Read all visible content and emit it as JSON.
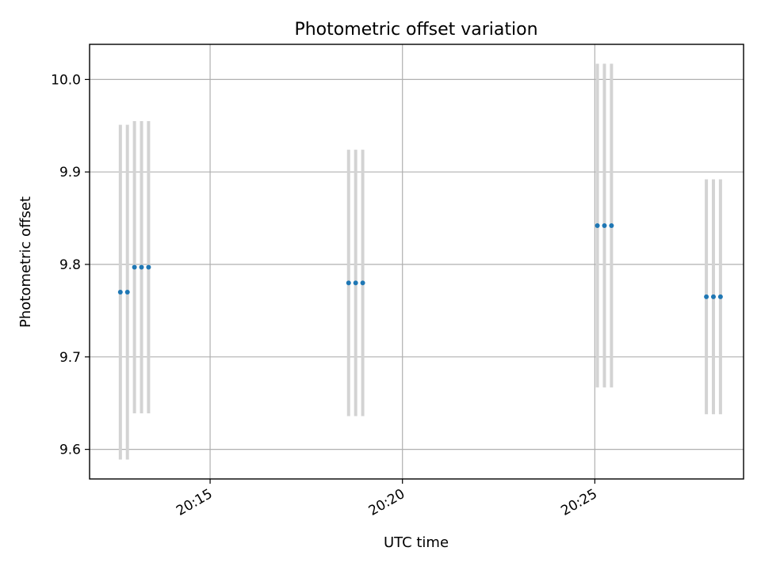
{
  "chart_data": {
    "type": "scatter",
    "title": "Photometric offset variation",
    "xlabel": "UTC time",
    "ylabel": "Photometric offset",
    "x_ticks": [
      "20:15",
      "20:20",
      "20:25"
    ],
    "y_ticks": [
      "9.6",
      "9.7",
      "9.8",
      "9.9",
      "10.0"
    ],
    "xlim": [
      "20:11:52",
      "20:28:52"
    ],
    "ylim": [
      9.568,
      10.038
    ],
    "grid": true,
    "point_color": "#1f77b4",
    "errorbar_color": "#d3d3d3",
    "points": [
      {
        "x": "20:12:40",
        "y": 9.77,
        "yerr": 0.181
      },
      {
        "x": "20:12:51",
        "y": 9.77,
        "yerr": 0.181
      },
      {
        "x": "20:13:02",
        "y": 9.797,
        "yerr": 0.158
      },
      {
        "x": "20:13:13",
        "y": 9.797,
        "yerr": 0.158
      },
      {
        "x": "20:13:24",
        "y": 9.797,
        "yerr": 0.158
      },
      {
        "x": "20:18:36",
        "y": 9.78,
        "yerr": 0.144
      },
      {
        "x": "20:18:47",
        "y": 9.78,
        "yerr": 0.144
      },
      {
        "x": "20:18:58",
        "y": 9.78,
        "yerr": 0.144
      },
      {
        "x": "20:25:04",
        "y": 9.842,
        "yerr": 0.175
      },
      {
        "x": "20:25:15",
        "y": 9.842,
        "yerr": 0.175
      },
      {
        "x": "20:25:26",
        "y": 9.842,
        "yerr": 0.175
      },
      {
        "x": "20:27:54",
        "y": 9.765,
        "yerr": 0.127
      },
      {
        "x": "20:28:05",
        "y": 9.765,
        "yerr": 0.127
      },
      {
        "x": "20:28:16",
        "y": 9.765,
        "yerr": 0.127
      }
    ]
  }
}
